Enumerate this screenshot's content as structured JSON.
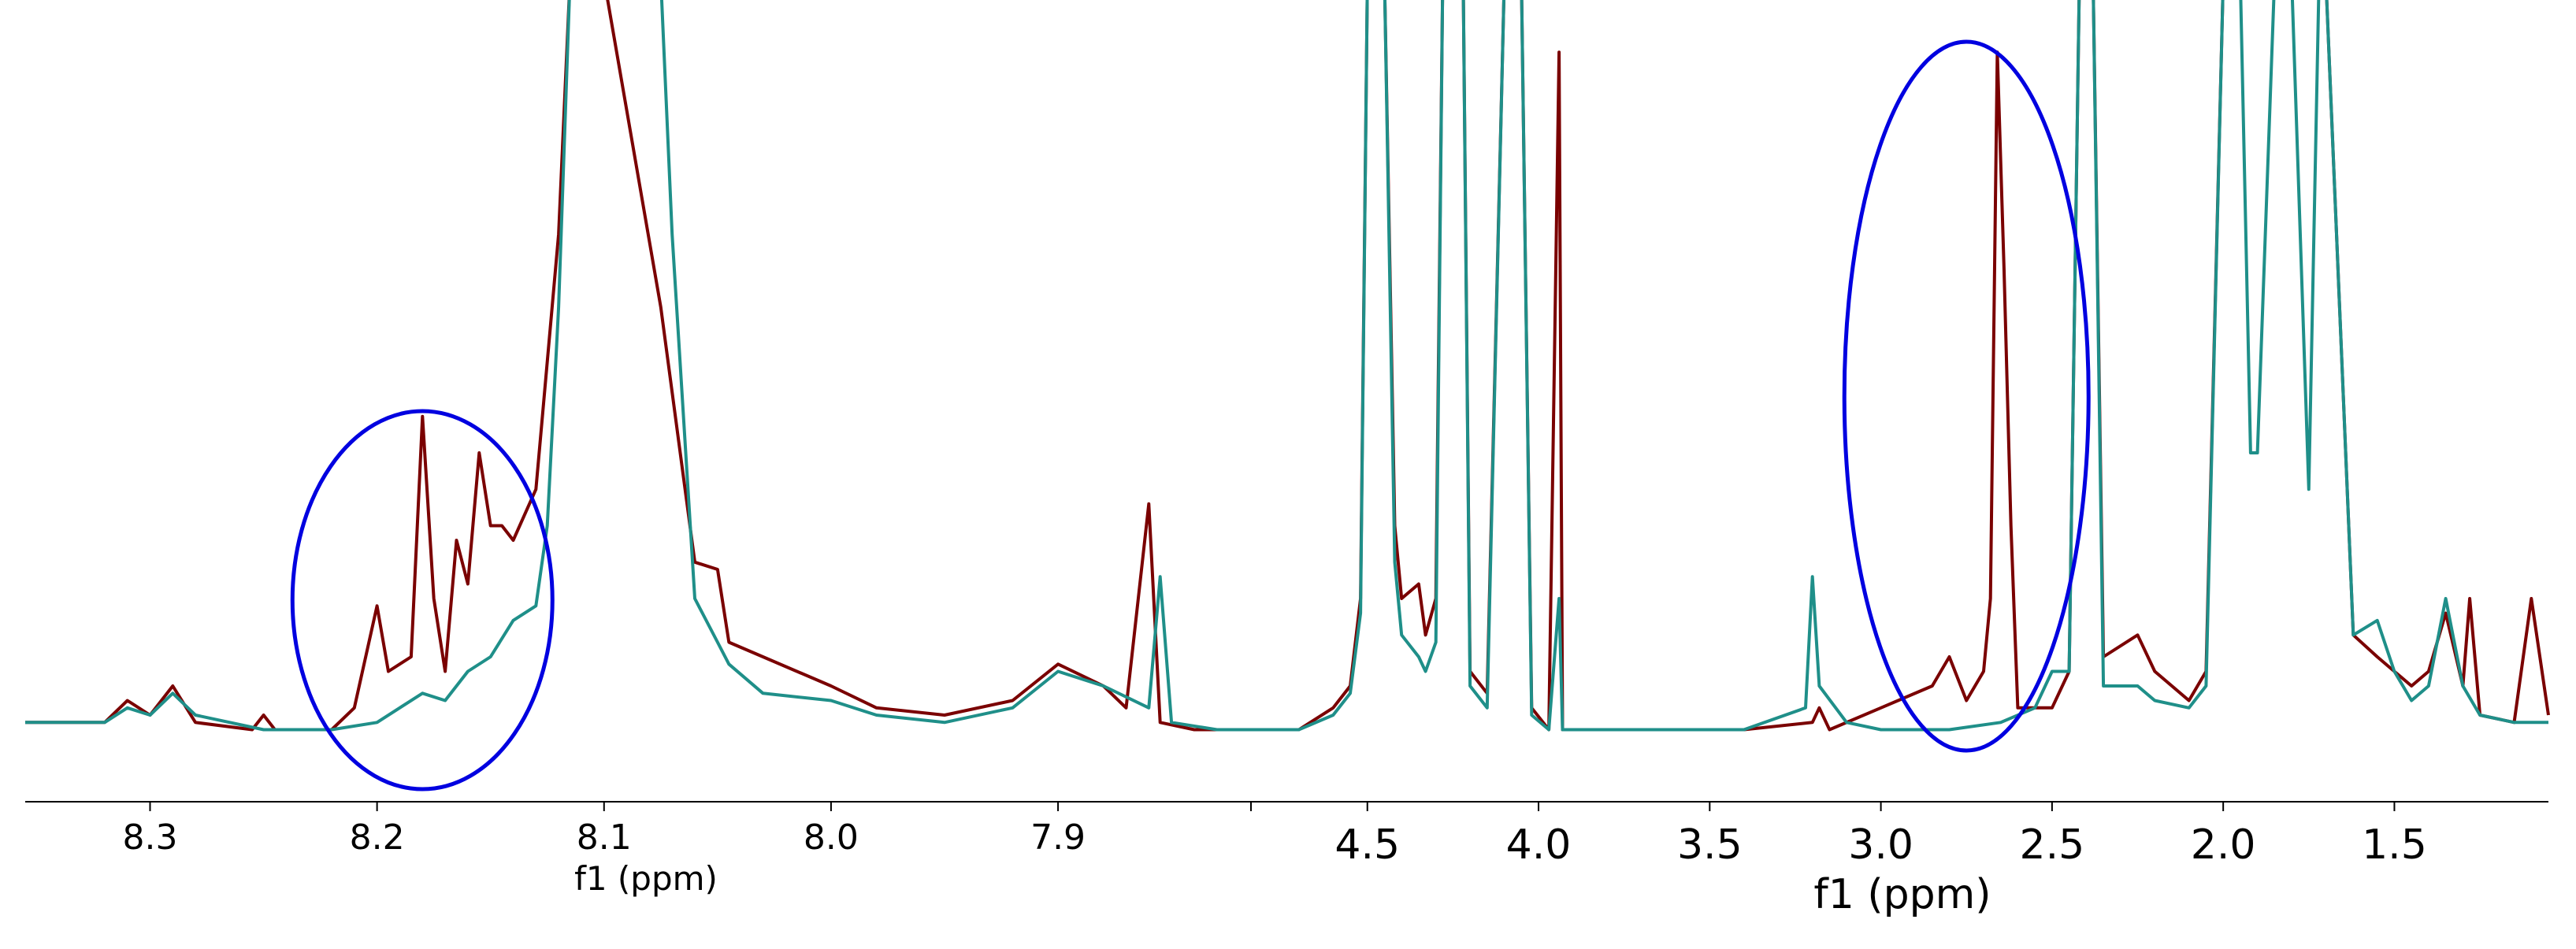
{
  "colors": {
    "series_dark_red": "#7a0000",
    "series_teal": "#1f8f89",
    "annotation_ellipse": "#0000e0",
    "axis": "#000000"
  },
  "chart_data": [
    {
      "type": "line",
      "panel": "left",
      "xlabel": "f1 (ppm)",
      "x_reversed": true,
      "xlim": [
        8.355,
        7.815
      ],
      "ticks": [
        8.3,
        8.2,
        8.1,
        8.0,
        7.9
      ],
      "tick_labels": [
        "8.3",
        "8.2",
        "8.1",
        "8.0",
        "7.9"
      ],
      "grid": false,
      "legend": "none",
      "y_axis_shown": false,
      "series": [
        {
          "color": "#7a0000",
          "points": [
            [
              8.355,
              0.03
            ],
            [
              8.32,
              0.03
            ],
            [
              8.31,
              0.06
            ],
            [
              8.3,
              0.04
            ],
            [
              8.29,
              0.08
            ],
            [
              8.28,
              0.03
            ],
            [
              8.255,
              0.02
            ],
            [
              8.25,
              0.04
            ],
            [
              8.245,
              0.02
            ],
            [
              8.22,
              0.02
            ],
            [
              8.21,
              0.05
            ],
            [
              8.2,
              0.19
            ],
            [
              8.195,
              0.1
            ],
            [
              8.185,
              0.12
            ],
            [
              8.18,
              0.45
            ],
            [
              8.175,
              0.2
            ],
            [
              8.17,
              0.1
            ],
            [
              8.165,
              0.28
            ],
            [
              8.16,
              0.22
            ],
            [
              8.155,
              0.4
            ],
            [
              8.15,
              0.3
            ],
            [
              8.145,
              0.3
            ],
            [
              8.14,
              0.28
            ],
            [
              8.13,
              0.35
            ],
            [
              8.12,
              0.7
            ],
            [
              8.115,
              1.2
            ],
            [
              8.1,
              1.2
            ],
            [
              8.075,
              0.6
            ],
            [
              8.06,
              0.25
            ],
            [
              8.05,
              0.24
            ],
            [
              8.045,
              0.14
            ],
            [
              8.03,
              0.12
            ],
            [
              8.0,
              0.08
            ],
            [
              7.98,
              0.05
            ],
            [
              7.95,
              0.04
            ],
            [
              7.92,
              0.06
            ],
            [
              7.9,
              0.11
            ],
            [
              7.88,
              0.08
            ],
            [
              7.87,
              0.05
            ],
            [
              7.86,
              0.33
            ],
            [
              7.855,
              0.03
            ],
            [
              7.84,
              0.02
            ],
            [
              7.815,
              0.02
            ]
          ]
        },
        {
          "color": "#1f8f89",
          "points": [
            [
              8.355,
              0.03
            ],
            [
              8.32,
              0.03
            ],
            [
              8.31,
              0.05
            ],
            [
              8.3,
              0.04
            ],
            [
              8.29,
              0.07
            ],
            [
              8.28,
              0.04
            ],
            [
              8.25,
              0.02
            ],
            [
              8.22,
              0.02
            ],
            [
              8.2,
              0.03
            ],
            [
              8.19,
              0.05
            ],
            [
              8.18,
              0.07
            ],
            [
              8.17,
              0.06
            ],
            [
              8.16,
              0.1
            ],
            [
              8.15,
              0.12
            ],
            [
              8.14,
              0.17
            ],
            [
              8.13,
              0.19
            ],
            [
              8.125,
              0.3
            ],
            [
              8.12,
              0.6
            ],
            [
              8.115,
              1.2
            ],
            [
              8.075,
              1.2
            ],
            [
              8.07,
              0.7
            ],
            [
              8.06,
              0.2
            ],
            [
              8.05,
              0.14
            ],
            [
              8.045,
              0.11
            ],
            [
              8.03,
              0.07
            ],
            [
              8.0,
              0.06
            ],
            [
              7.98,
              0.04
            ],
            [
              7.95,
              0.03
            ],
            [
              7.92,
              0.05
            ],
            [
              7.9,
              0.1
            ],
            [
              7.88,
              0.08
            ],
            [
              7.86,
              0.05
            ],
            [
              7.855,
              0.23
            ],
            [
              7.85,
              0.03
            ],
            [
              7.83,
              0.02
            ],
            [
              7.815,
              0.02
            ]
          ]
        }
      ],
      "annotations": [
        {
          "shape": "ellipse",
          "center_ppm": 8.18,
          "label": ""
        }
      ]
    },
    {
      "type": "line",
      "panel": "right",
      "xlabel": "f1 (ppm)",
      "x_reversed": true,
      "xlim": [
        4.84,
        1.05
      ],
      "ticks": [
        4.5,
        4.0,
        3.5,
        3.0,
        2.5,
        2.0,
        1.5
      ],
      "tick_labels": [
        "4.5",
        "4.0",
        "3.5",
        "3.0",
        "2.5",
        "2.0",
        "1.5"
      ],
      "grid": false,
      "legend": "none",
      "y_axis_shown": false,
      "series": [
        {
          "color": "#7a0000",
          "points": [
            [
              4.84,
              0.02
            ],
            [
              4.7,
              0.02
            ],
            [
              4.6,
              0.05
            ],
            [
              4.55,
              0.08
            ],
            [
              4.52,
              0.2
            ],
            [
              4.5,
              1.2
            ],
            [
              4.45,
              1.2
            ],
            [
              4.42,
              0.3
            ],
            [
              4.4,
              0.2
            ],
            [
              4.35,
              0.22
            ],
            [
              4.33,
              0.15
            ],
            [
              4.3,
              0.2
            ],
            [
              4.28,
              1.2
            ],
            [
              4.22,
              1.2
            ],
            [
              4.2,
              0.1
            ],
            [
              4.15,
              0.07
            ],
            [
              4.1,
              1.2
            ],
            [
              4.05,
              1.2
            ],
            [
              4.02,
              0.05
            ],
            [
              3.97,
              0.02
            ],
            [
              3.94,
              0.95
            ],
            [
              3.93,
              0.02
            ],
            [
              3.8,
              0.02
            ],
            [
              3.6,
              0.02
            ],
            [
              3.4,
              0.02
            ],
            [
              3.2,
              0.03
            ],
            [
              3.18,
              0.05
            ],
            [
              3.15,
              0.02
            ],
            [
              3.0,
              0.05
            ],
            [
              2.85,
              0.08
            ],
            [
              2.8,
              0.12
            ],
            [
              2.75,
              0.06
            ],
            [
              2.7,
              0.1
            ],
            [
              2.68,
              0.2
            ],
            [
              2.66,
              0.95
            ],
            [
              2.64,
              0.65
            ],
            [
              2.62,
              0.3
            ],
            [
              2.6,
              0.05
            ],
            [
              2.5,
              0.05
            ],
            [
              2.45,
              0.1
            ],
            [
              2.42,
              1.2
            ],
            [
              2.38,
              1.2
            ],
            [
              2.35,
              0.12
            ],
            [
              2.25,
              0.15
            ],
            [
              2.2,
              0.1
            ],
            [
              2.1,
              0.06
            ],
            [
              2.05,
              0.1
            ],
            [
              2.0,
              1.2
            ],
            [
              1.95,
              1.2
            ],
            [
              1.92,
              1.2
            ],
            [
              1.85,
              1.2
            ],
            [
              1.8,
              1.2
            ],
            [
              1.75,
              1.2
            ],
            [
              1.7,
              1.2
            ],
            [
              1.62,
              0.15
            ],
            [
              1.55,
              0.12
            ],
            [
              1.5,
              0.1
            ],
            [
              1.45,
              0.08
            ],
            [
              1.4,
              0.1
            ],
            [
              1.35,
              0.18
            ],
            [
              1.3,
              0.08
            ],
            [
              1.28,
              0.2
            ],
            [
              1.25,
              0.04
            ],
            [
              1.15,
              0.03
            ],
            [
              1.1,
              0.2
            ],
            [
              1.05,
              0.04
            ]
          ]
        },
        {
          "color": "#1f8f89",
          "points": [
            [
              4.84,
              0.02
            ],
            [
              4.7,
              0.02
            ],
            [
              4.6,
              0.04
            ],
            [
              4.55,
              0.07
            ],
            [
              4.52,
              0.18
            ],
            [
              4.5,
              1.2
            ],
            [
              4.45,
              1.2
            ],
            [
              4.42,
              0.25
            ],
            [
              4.4,
              0.15
            ],
            [
              4.35,
              0.12
            ],
            [
              4.33,
              0.1
            ],
            [
              4.3,
              0.14
            ],
            [
              4.28,
              1.2
            ],
            [
              4.22,
              1.2
            ],
            [
              4.2,
              0.08
            ],
            [
              4.15,
              0.05
            ],
            [
              4.1,
              1.2
            ],
            [
              4.05,
              1.2
            ],
            [
              4.02,
              0.04
            ],
            [
              3.97,
              0.02
            ],
            [
              3.94,
              0.2
            ],
            [
              3.93,
              0.02
            ],
            [
              3.8,
              0.02
            ],
            [
              3.6,
              0.02
            ],
            [
              3.4,
              0.02
            ],
            [
              3.22,
              0.05
            ],
            [
              3.2,
              0.23
            ],
            [
              3.18,
              0.08
            ],
            [
              3.1,
              0.03
            ],
            [
              3.0,
              0.02
            ],
            [
              2.8,
              0.02
            ],
            [
              2.65,
              0.03
            ],
            [
              2.55,
              0.05
            ],
            [
              2.5,
              0.1
            ],
            [
              2.45,
              0.1
            ],
            [
              2.42,
              1.2
            ],
            [
              2.38,
              1.2
            ],
            [
              2.35,
              0.08
            ],
            [
              2.25,
              0.08
            ],
            [
              2.2,
              0.06
            ],
            [
              2.1,
              0.05
            ],
            [
              2.05,
              0.08
            ],
            [
              2.0,
              1.2
            ],
            [
              1.95,
              1.2
            ],
            [
              1.92,
              0.4
            ],
            [
              1.9,
              0.4
            ],
            [
              1.85,
              1.2
            ],
            [
              1.8,
              1.2
            ],
            [
              1.75,
              0.35
            ],
            [
              1.72,
              1.2
            ],
            [
              1.7,
              1.2
            ],
            [
              1.62,
              0.15
            ],
            [
              1.55,
              0.17
            ],
            [
              1.5,
              0.1
            ],
            [
              1.45,
              0.06
            ],
            [
              1.4,
              0.08
            ],
            [
              1.35,
              0.2
            ],
            [
              1.3,
              0.08
            ],
            [
              1.25,
              0.04
            ],
            [
              1.15,
              0.03
            ],
            [
              1.05,
              0.03
            ]
          ]
        }
      ],
      "annotations": [
        {
          "shape": "ellipse",
          "center_ppm": 2.75,
          "label": ""
        }
      ]
    }
  ]
}
